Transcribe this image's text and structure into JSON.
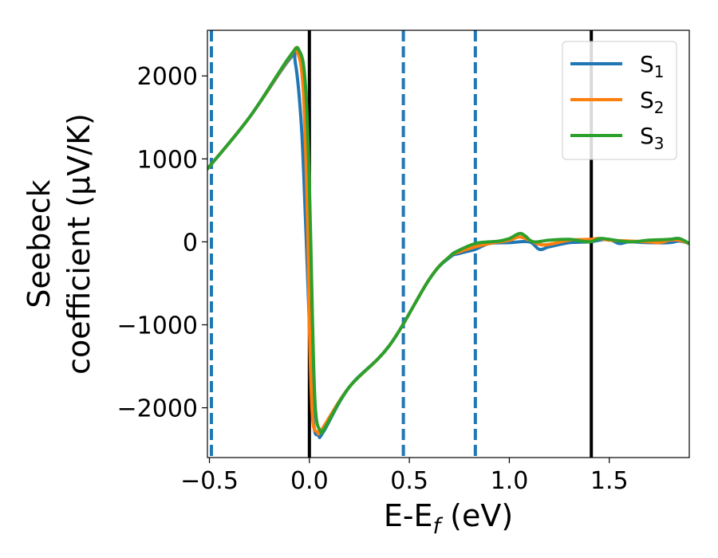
{
  "chart_data": {
    "type": "line",
    "xlabel": "E-E",
    "xlabel_sub": "f",
    "xlabel_unit": " (eV)",
    "ylabel_line1": "Seebeck",
    "ylabel_line2": "coefficient  (μV/K)",
    "xlim": [
      -0.51,
      1.9
    ],
    "ylim": [
      -2600,
      2550
    ],
    "xticks": [
      -0.5,
      0.0,
      0.5,
      1.0,
      1.5
    ],
    "xtick_labels": [
      "−0.5",
      "0.0",
      "0.5",
      "1.0",
      "1.5"
    ],
    "yticks": [
      2000,
      1000,
      0,
      -1000,
      -2000
    ],
    "ytick_labels": [
      "2000",
      "1000",
      "0",
      "−1000",
      "−2000"
    ],
    "grid": false,
    "legend_position": "top-right",
    "vertical_lines": [
      {
        "x": -0.49,
        "style": "dashed",
        "color": "#1f77b4"
      },
      {
        "x": 0.0,
        "style": "solid",
        "color": "#000000"
      },
      {
        "x": 0.47,
        "style": "dashed",
        "color": "#1f77b4"
      },
      {
        "x": 0.83,
        "style": "dashed",
        "color": "#1f77b4"
      },
      {
        "x": 1.41,
        "style": "solid",
        "color": "#000000"
      }
    ],
    "series": [
      {
        "name": "S",
        "sub": "1",
        "color": "#1f77b4",
        "x": [
          -0.51,
          -0.3,
          -0.1,
          -0.07,
          -0.04,
          -0.02,
          0.0,
          0.02,
          0.045,
          0.07,
          0.2,
          0.4,
          0.6,
          0.7,
          0.75,
          0.83,
          0.9,
          1.0,
          1.1,
          1.15,
          1.2,
          1.3,
          1.4,
          1.45,
          1.5,
          1.55,
          1.6,
          1.7,
          1.8,
          1.85,
          1.9
        ],
        "y": [
          880,
          1500,
          2200,
          2150,
          1400,
          300,
          -1000,
          -2150,
          -2330,
          -2290,
          -1750,
          -1250,
          -450,
          -190,
          -140,
          -90,
          -20,
          -10,
          0,
          -90,
          -60,
          -10,
          0,
          20,
          30,
          -20,
          0,
          -10,
          -10,
          10,
          -20
        ]
      },
      {
        "name": "S",
        "sub": "2",
        "color": "#ff7f0e",
        "x": [
          -0.51,
          -0.3,
          -0.1,
          -0.06,
          -0.03,
          -0.01,
          0.0,
          0.015,
          0.04,
          0.065,
          0.2,
          0.4,
          0.6,
          0.7,
          0.75,
          0.83,
          0.9,
          1.0,
          1.05,
          1.1,
          1.15,
          1.2,
          1.3,
          1.4,
          1.45,
          1.5,
          1.6,
          1.7,
          1.75,
          1.8,
          1.85,
          1.9
        ],
        "y": [
          880,
          1500,
          2220,
          2290,
          1800,
          300,
          -1000,
          -2100,
          -2290,
          -2250,
          -1750,
          -1250,
          -450,
          -180,
          -120,
          -60,
          -20,
          20,
          60,
          20,
          -30,
          -30,
          20,
          30,
          40,
          20,
          10,
          0,
          -10,
          20,
          20,
          -20
        ]
      },
      {
        "name": "S",
        "sub": "3",
        "color": "#2ca02c",
        "x": [
          -0.51,
          -0.3,
          -0.1,
          -0.05,
          -0.02,
          0.0,
          0.015,
          0.03,
          0.055,
          0.08,
          0.2,
          0.4,
          0.6,
          0.7,
          0.75,
          0.83,
          0.9,
          0.95,
          1.0,
          1.05,
          1.08,
          1.12,
          1.2,
          1.3,
          1.4,
          1.45,
          1.5,
          1.6,
          1.7,
          1.8,
          1.85,
          1.9
        ],
        "y": [
          880,
          1500,
          2230,
          2300,
          1900,
          700,
          -900,
          -2000,
          -2280,
          -2230,
          -1750,
          -1250,
          -450,
          -180,
          -100,
          -20,
          0,
          10,
          40,
          100,
          70,
          0,
          20,
          30,
          0,
          40,
          30,
          0,
          20,
          30,
          40,
          -20
        ]
      }
    ]
  }
}
